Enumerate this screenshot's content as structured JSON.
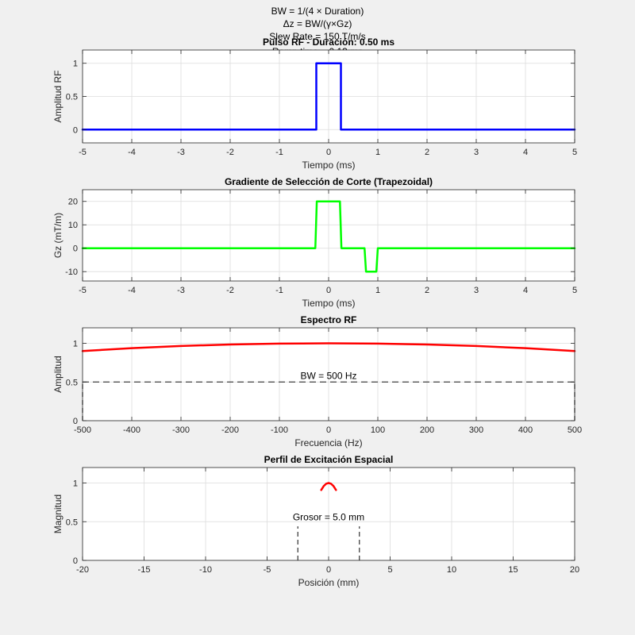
{
  "figure": {
    "header_lines": [
      "BW = 1/(4 × Duration)",
      "Δz = BW/(γ×Gz)",
      "Slew Rate = 150 T/m/s",
      "Ramp time = 0.13 ms"
    ]
  },
  "colors": {
    "rf": "#0000ff",
    "gradient": "#00ff00",
    "spectrum": "#ff0000",
    "profile": "#ff0000",
    "dashed": "#404040",
    "axes_bg": "#ffffff",
    "figure_bg": "#f0f0f0",
    "grid": "#dcdcdc"
  },
  "chart_data": [
    {
      "type": "line",
      "title": "Pulso RF - Duración: 0.50 ms",
      "xlabel": "Tiempo (ms)",
      "ylabel": "Amplitud RF",
      "xlim": [
        -5,
        5
      ],
      "ylim": [
        -0.2,
        1.2
      ],
      "xticks": [
        -5,
        -4,
        -3,
        -2,
        -1,
        0,
        1,
        2,
        3,
        4,
        5
      ],
      "yticks": [
        0,
        0.5,
        1
      ],
      "grid": true,
      "series": [
        {
          "color": "rf",
          "x": [
            -5,
            -0.25,
            -0.25,
            0.25,
            0.25,
            5
          ],
          "y": [
            0,
            0,
            1,
            1,
            0,
            0
          ]
        }
      ]
    },
    {
      "type": "line",
      "title": "Gradiente de Selección de Corte (Trapezoidal)",
      "xlabel": "Tiempo (ms)",
      "ylabel": "Gz (mT/m)",
      "xlim": [
        -5,
        5
      ],
      "ylim": [
        -14,
        25
      ],
      "xticks": [
        -5,
        -4,
        -3,
        -2,
        -1,
        0,
        1,
        2,
        3,
        4,
        5
      ],
      "yticks": [
        -10,
        0,
        10,
        20
      ],
      "grid": true,
      "series": [
        {
          "color": "gradient",
          "x": [
            -5,
            -0.27,
            -0.24,
            0.23,
            0.26,
            0.73,
            0.76,
            0.97,
            1.0,
            5
          ],
          "y": [
            0,
            0,
            20,
            20,
            0,
            0,
            -10,
            -10,
            0,
            0
          ]
        }
      ]
    },
    {
      "type": "line",
      "title": "Espectro RF",
      "xlabel": "Frecuencia (Hz)",
      "ylabel": "Amplitud",
      "xlim": [
        -500,
        500
      ],
      "ylim": [
        0,
        1.2
      ],
      "xticks": [
        -500,
        -400,
        -300,
        -200,
        -100,
        0,
        100,
        200,
        300,
        400,
        500
      ],
      "yticks": [
        0,
        0.5,
        1
      ],
      "grid": true,
      "series": [
        {
          "color": "spectrum",
          "x": [
            -500,
            -400,
            -300,
            -200,
            -100,
            0,
            100,
            200,
            300,
            400,
            500
          ],
          "y": [
            0.9,
            0.937,
            0.965,
            0.985,
            0.996,
            1.0,
            0.996,
            0.985,
            0.965,
            0.937,
            0.9
          ]
        }
      ],
      "hlines": [
        {
          "y": 0.5,
          "style": "dashed"
        }
      ],
      "vlines": [
        {
          "x": -500,
          "y0": 0,
          "y1": 0.5,
          "style": "dashed"
        },
        {
          "x": 500,
          "y0": 0,
          "y1": 0.5,
          "style": "dashed"
        }
      ],
      "annotations": [
        {
          "text": "BW = 500 Hz",
          "x": 0,
          "y": 0.52
        }
      ]
    },
    {
      "type": "line",
      "title": "Perfil de Excitación Espacial",
      "xlabel": "Posición (mm)",
      "ylabel": "Magnitud",
      "xlim": [
        -20,
        20
      ],
      "ylim": [
        0,
        1.2
      ],
      "xticks": [
        -20,
        -15,
        -10,
        -5,
        0,
        5,
        10,
        15,
        20
      ],
      "yticks": [
        0,
        0.5,
        1
      ],
      "grid": true,
      "series": [
        {
          "color": "profile",
          "x": [
            -0.6,
            -0.4,
            -0.2,
            0,
            0.2,
            0.4,
            0.6
          ],
          "y": [
            0.91,
            0.96,
            0.99,
            1.0,
            0.99,
            0.96,
            0.91
          ]
        }
      ],
      "vlines": [
        {
          "x": -2.5,
          "y0": 0,
          "y1": 0.44,
          "style": "dashed"
        },
        {
          "x": 2.5,
          "y0": 0,
          "y1": 0.44,
          "style": "dashed"
        }
      ],
      "annotations": [
        {
          "text": "Grosor = 5.0 mm",
          "x": 0,
          "y": 0.5
        }
      ]
    }
  ]
}
